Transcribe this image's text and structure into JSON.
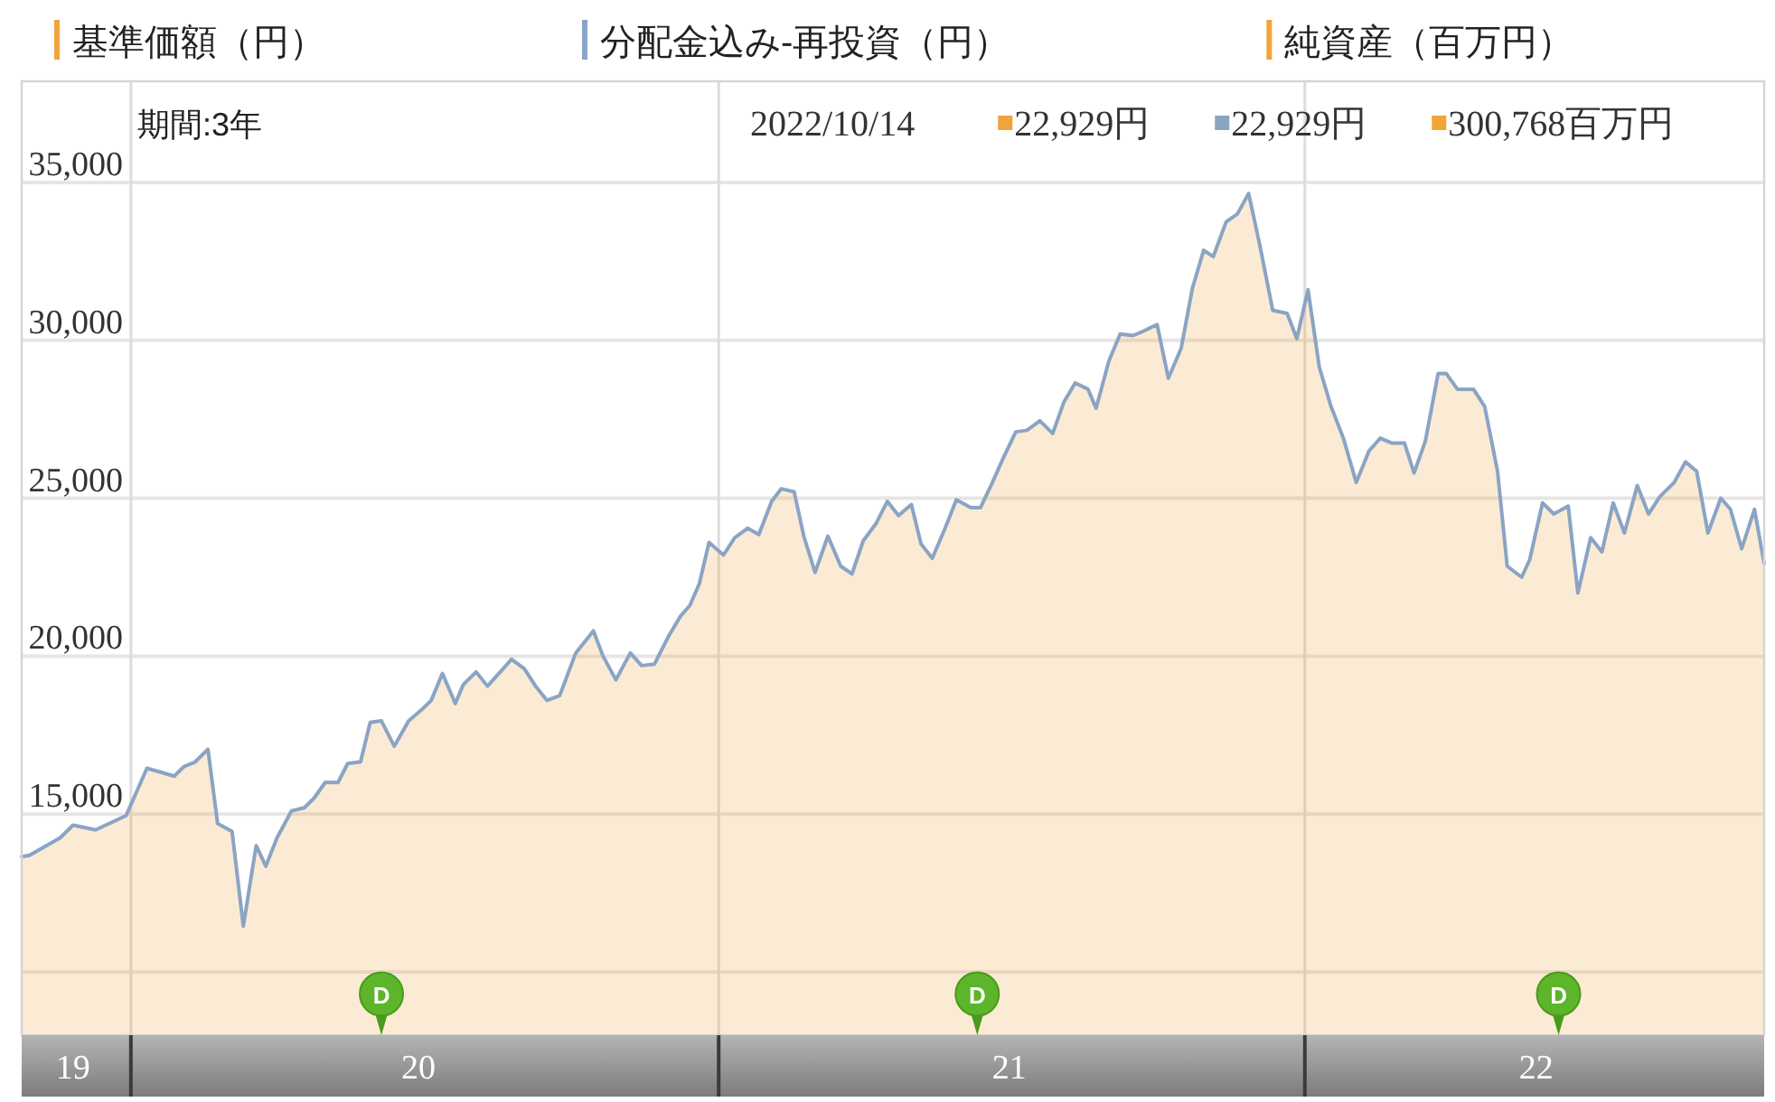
{
  "chart_data": {
    "type": "area",
    "x": [
      "2019-10-25",
      "2019-10-30",
      "2019-11-18",
      "2019-11-26",
      "2019-12-10",
      "2019-12-29",
      "2020-01-11",
      "2020-01-28",
      "2020-02-03",
      "2020-02-10",
      "2020-02-18",
      "2020-02-24",
      "2020-03-04",
      "2020-03-11",
      "2020-03-19",
      "2020-03-25",
      "2020-04-01",
      "2020-04-10",
      "2020-04-18",
      "2020-04-24",
      "2020-05-01",
      "2020-05-09",
      "2020-05-15",
      "2020-05-23",
      "2020-05-29",
      "2020-06-05",
      "2020-06-13",
      "2020-06-22",
      "2020-06-30",
      "2020-07-06",
      "2020-07-13",
      "2020-07-21",
      "2020-07-26",
      "2020-08-03",
      "2020-08-10",
      "2020-08-18",
      "2020-08-25",
      "2020-09-02",
      "2020-09-09",
      "2020-09-16",
      "2020-09-24",
      "2020-10-04",
      "2020-10-15",
      "2020-10-21",
      "2020-10-29",
      "2020-11-07",
      "2020-11-14",
      "2020-11-22",
      "2020-12-01",
      "2020-12-08",
      "2020-12-14",
      "2020-12-20",
      "2020-12-26",
      "2021-01-04",
      "2021-01-11",
      "2021-01-19",
      "2021-01-26",
      "2021-02-03",
      "2021-02-09",
      "2021-02-17",
      "2021-02-23",
      "2021-03-02",
      "2021-03-10",
      "2021-03-18",
      "2021-03-25",
      "2021-04-01",
      "2021-04-09",
      "2021-04-16",
      "2021-04-23",
      "2021-05-01",
      "2021-05-07",
      "2021-05-14",
      "2021-05-22",
      "2021-05-29",
      "2021-06-07",
      "2021-06-13",
      "2021-06-20",
      "2021-06-27",
      "2021-07-05",
      "2021-07-12",
      "2021-07-20",
      "2021-07-28",
      "2021-08-04",
      "2021-08-11",
      "2021-08-19",
      "2021-08-24",
      "2021-09-01",
      "2021-09-08",
      "2021-09-16",
      "2021-09-23",
      "2021-10-01",
      "2021-10-08",
      "2021-10-16",
      "2021-10-23",
      "2021-10-30",
      "2021-11-05",
      "2021-11-13",
      "2021-11-20",
      "2021-11-27",
      "2021-12-04",
      "2021-12-12",
      "2021-12-21",
      "2021-12-27",
      "2022-01-03",
      "2022-01-10",
      "2022-01-17",
      "2022-01-25",
      "2022-02-02",
      "2022-02-10",
      "2022-02-17",
      "2022-02-24",
      "2022-03-04",
      "2022-03-10",
      "2022-03-17",
      "2022-03-25",
      "2022-03-30",
      "2022-04-06",
      "2022-04-16",
      "2022-04-23",
      "2022-05-01",
      "2022-05-07",
      "2022-05-16",
      "2022-05-21",
      "2022-05-29",
      "2022-06-05",
      "2022-06-14",
      "2022-06-20",
      "2022-06-28",
      "2022-07-05",
      "2022-07-12",
      "2022-07-19",
      "2022-07-27",
      "2022-08-03",
      "2022-08-10",
      "2022-08-19",
      "2022-08-26",
      "2022-09-02",
      "2022-09-09",
      "2022-09-17",
      "2022-09-23",
      "2022-09-30",
      "2022-10-08",
      "2022-10-14"
    ],
    "series": [
      {
        "name": "基準価額（円）",
        "color": "#f2a33a",
        "values": [
          13650,
          13700,
          14250,
          14650,
          14500,
          14950,
          16450,
          16200,
          16500,
          16650,
          17050,
          14700,
          14450,
          11450,
          14000,
          13350,
          14250,
          15100,
          15200,
          15500,
          16000,
          16000,
          16600,
          16650,
          17900,
          17950,
          17150,
          17950,
          18300,
          18600,
          19450,
          18500,
          19100,
          19500,
          19050,
          19500,
          19900,
          19600,
          19050,
          18600,
          18750,
          20100,
          20800,
          20000,
          19250,
          20100,
          19700,
          19750,
          20650,
          21250,
          21600,
          22300,
          23600,
          23200,
          23750,
          24050,
          23850,
          24900,
          25300,
          25200,
          23800,
          22650,
          23800,
          22850,
          22600,
          23650,
          24200,
          24900,
          24450,
          24800,
          23550,
          23100,
          24050,
          24950,
          24700,
          24700,
          25450,
          26250,
          27100,
          27150,
          27450,
          27050,
          28050,
          28650,
          28450,
          27850,
          29350,
          30200,
          30150,
          30300,
          30500,
          28800,
          29750,
          31650,
          32850,
          32650,
          33750,
          34000,
          34650,
          33000,
          30950,
          30850,
          30050,
          31600,
          29150,
          27950,
          26900,
          25500,
          26500,
          26900,
          26750,
          26750,
          25800,
          26800,
          28950,
          28950,
          28450,
          28450,
          27900,
          25850,
          22850,
          22500,
          23050,
          24850,
          24500,
          24750,
          22000,
          23750,
          23300,
          24850,
          23900,
          25400,
          24500,
          25050,
          25500,
          26150,
          25850,
          23900,
          25000,
          24650,
          23400,
          24650,
          22929
        ]
      },
      {
        "name": "分配金込み-再投資（円）",
        "color": "#8aa4c4",
        "type": "line",
        "values": [
          13650,
          13700,
          14250,
          14650,
          14500,
          14950,
          16450,
          16200,
          16500,
          16650,
          17050,
          14700,
          14450,
          11450,
          14000,
          13350,
          14250,
          15100,
          15200,
          15500,
          16000,
          16000,
          16600,
          16650,
          17900,
          17950,
          17150,
          17950,
          18300,
          18600,
          19450,
          18500,
          19100,
          19500,
          19050,
          19500,
          19900,
          19600,
          19050,
          18600,
          18750,
          20100,
          20800,
          20000,
          19250,
          20100,
          19700,
          19750,
          20650,
          21250,
          21600,
          22300,
          23600,
          23200,
          23750,
          24050,
          23850,
          24900,
          25300,
          25200,
          23800,
          22650,
          23800,
          22850,
          22600,
          23650,
          24200,
          24900,
          24450,
          24800,
          23550,
          23100,
          24050,
          24950,
          24700,
          24700,
          25450,
          26250,
          27100,
          27150,
          27450,
          27050,
          28050,
          28650,
          28450,
          27850,
          29350,
          30200,
          30150,
          30300,
          30500,
          28800,
          29750,
          31650,
          32850,
          32650,
          33750,
          34000,
          34650,
          33000,
          30950,
          30850,
          30050,
          31600,
          29150,
          27950,
          26900,
          25500,
          26500,
          26900,
          26750,
          26750,
          25800,
          26800,
          28950,
          28950,
          28450,
          28450,
          27900,
          25850,
          22850,
          22500,
          23050,
          24850,
          24500,
          24750,
          22000,
          23750,
          23300,
          24850,
          23900,
          25400,
          24500,
          25050,
          25500,
          26150,
          25850,
          23900,
          25000,
          24650,
          23400,
          24650,
          22929
        ]
      },
      {
        "name": "純資産（百万円）",
        "color": "#f2a33a",
        "values": [
          null,
          null,
          null,
          null,
          null,
          null,
          null,
          null,
          null,
          null,
          null,
          null,
          null,
          null,
          null,
          null,
          null,
          null,
          null,
          null,
          null,
          null,
          null,
          null,
          null,
          null,
          null,
          null,
          null,
          null,
          null,
          null,
          null,
          null,
          null,
          null,
          null,
          null,
          null,
          null,
          null,
          null,
          null,
          null,
          null,
          null,
          null,
          null,
          null,
          null,
          null,
          null,
          null,
          null,
          null,
          null,
          null,
          null,
          null,
          null,
          null,
          null,
          null,
          null,
          null,
          null,
          null,
          null,
          null,
          null,
          null,
          null,
          null,
          null,
          null,
          null,
          null,
          null,
          null,
          null,
          null,
          null,
          null,
          null,
          null,
          null,
          null,
          null,
          null,
          null,
          null,
          null,
          null,
          null,
          null,
          null,
          null,
          null,
          null,
          null,
          null,
          null,
          null,
          null,
          null,
          null,
          null,
          null,
          null,
          null,
          null,
          null,
          null,
          null,
          null,
          null,
          null,
          null,
          null,
          null,
          null,
          null,
          null,
          null,
          null,
          null,
          null,
          null,
          null,
          null,
          null,
          null,
          null,
          null,
          null,
          null,
          null,
          null,
          null,
          null,
          null,
          null,
          null
        ]
      }
    ],
    "xlim": [
      "2019-10-25",
      "2022-10-14"
    ],
    "xticks": [
      {
        "value": "2019-11-26",
        "label": "19"
      },
      {
        "value": "2020-06-28",
        "label": "20"
      },
      {
        "value": "2021-07-01",
        "label": "21"
      },
      {
        "value": "2022-05-25",
        "label": "22"
      }
    ],
    "ylim": [
      8000,
      38200
    ],
    "yticks": [
      {
        "value": 10000,
        "label": null
      },
      {
        "value": 15000,
        "label": "15,000"
      },
      {
        "value": 20000,
        "label": "20,000"
      },
      {
        "value": 25000,
        "label": "25,000"
      },
      {
        "value": 30000,
        "label": "30,000"
      },
      {
        "value": 35000,
        "label": "35,000"
      }
    ],
    "ref_lines": [
      {
        "axis": "x",
        "value": "2020-01-01",
        "color": "#dcdcdc"
      },
      {
        "axis": "x",
        "value": "2021-01-01",
        "color": "#dcdcdc"
      },
      {
        "axis": "x",
        "value": "2022-01-01",
        "color": "#dcdcdc"
      }
    ],
    "annotations": [
      "期間:3年",
      "2022/10/14",
      "22,929円",
      "22,929円",
      "300,768百万円",
      {
        "text": "D",
        "x": "2020-06-05",
        "y": 9300
      },
      {
        "text": "D",
        "x": "2021-06-11",
        "y": 9300
      },
      {
        "text": "D",
        "x": "2022-06-08",
        "y": 9300
      }
    ],
    "grid": "y",
    "legend": "top"
  }
}
